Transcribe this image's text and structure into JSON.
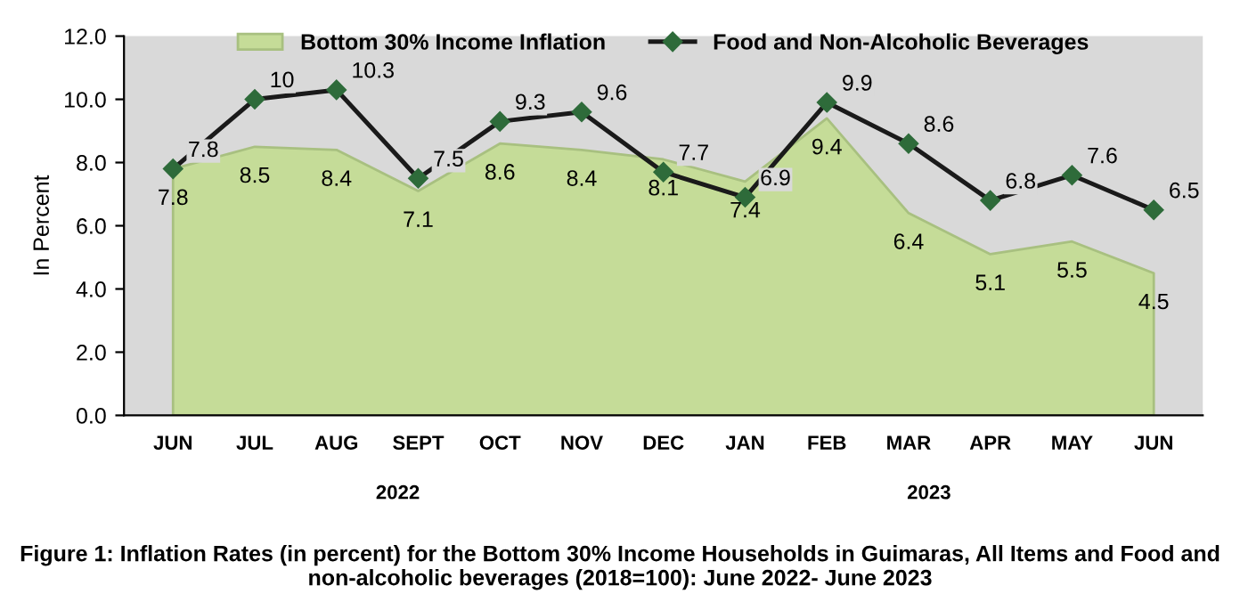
{
  "chart_data": {
    "type": "area",
    "title": "Figure 1: Inflation Rates (in percent) for the Bottom 30% Income Households in Guimaras, All Items and Food and non-alcoholic beverages (2018=100): June 2022- June 2023",
    "ylabel": "In Percent",
    "categories": [
      "JUN",
      "JUL",
      "AUG",
      "SEPT",
      "OCT",
      "NOV",
      "DEC",
      "JAN",
      "FEB",
      "MAR",
      "APR",
      "MAY",
      "JUN"
    ],
    "series": [
      {
        "name": "Bottom 30% Income Inflation",
        "color": "#c5dc98",
        "values": [
          7.8,
          8.5,
          8.4,
          7.1,
          8.6,
          8.4,
          8.1,
          7.4,
          9.4,
          6.4,
          5.1,
          5.5,
          4.5
        ]
      },
      {
        "name": "Food and Non-Alcoholic Beverages",
        "type": "line",
        "color": "#1a1a1a",
        "marker": "diamond",
        "values": [
          7.8,
          10,
          10.3,
          7.5,
          9.3,
          9.6,
          7.7,
          6.9,
          9.9,
          8.6,
          6.8,
          7.6,
          6.5
        ]
      }
    ],
    "annotations": [
      "2022",
      "2023"
    ],
    "ylim": [
      0,
      12
    ],
    "yticks": [
      {
        "value": 0,
        "label": "0.0"
      },
      {
        "value": 2,
        "label": "2.0"
      },
      {
        "value": 4,
        "label": "4.0"
      },
      {
        "value": 6,
        "label": "6.0"
      },
      {
        "value": 8,
        "label": "8.0"
      },
      {
        "value": 10,
        "label": "10.0"
      },
      {
        "value": 12,
        "label": "12.0"
      }
    ],
    "data_labels": true,
    "legend": "top",
    "grid": false
  }
}
